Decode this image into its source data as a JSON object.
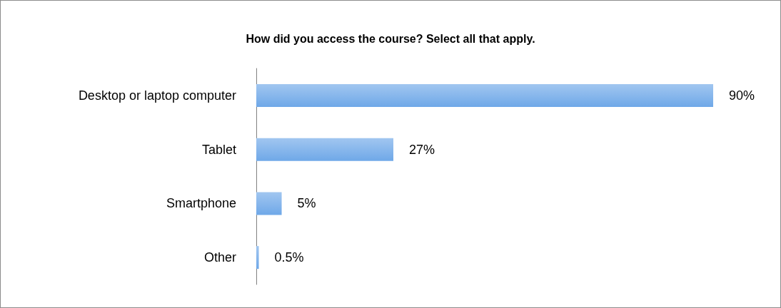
{
  "chart_data": {
    "type": "bar",
    "orientation": "horizontal",
    "title": "How did you access the course? Select all that apply.",
    "categories": [
      "Desktop or laptop computer",
      "Tablet",
      "Smartphone",
      "Other"
    ],
    "values": [
      90,
      27,
      5,
      0.5
    ],
    "value_labels": [
      "90%",
      "27%",
      "5%",
      "0.5%"
    ],
    "color": "#6fa8e8"
  }
}
